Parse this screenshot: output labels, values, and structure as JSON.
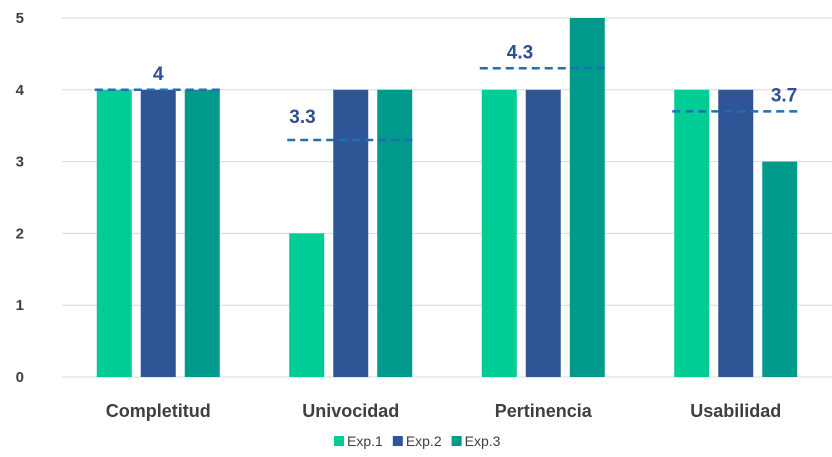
{
  "chart_data": {
    "type": "bar",
    "categories": [
      "Completitud",
      "Univocidad",
      "Pertinencia",
      "Usabilidad"
    ],
    "series": [
      {
        "name": "Exp.1",
        "color": "#00cc96",
        "values": [
          4,
          2,
          4,
          4
        ]
      },
      {
        "name": "Exp.2",
        "color": "#2f5597",
        "values": [
          4,
          4,
          4,
          4
        ]
      },
      {
        "name": "Exp.3",
        "color": "#009a8c",
        "values": [
          4,
          4,
          5,
          3
        ]
      }
    ],
    "averages": [
      {
        "value": 4,
        "label": "4"
      },
      {
        "value": 3.3,
        "label": "3.3"
      },
      {
        "value": 4.3,
        "label": "4.3"
      },
      {
        "value": 3.7,
        "label": "3.7"
      }
    ],
    "average_line_color": "#1f6fb5",
    "yticks": [
      "0",
      "1",
      "2",
      "3",
      "4",
      "5"
    ],
    "ylim": [
      0,
      5
    ],
    "grid": true,
    "legend_position": "bottom"
  }
}
